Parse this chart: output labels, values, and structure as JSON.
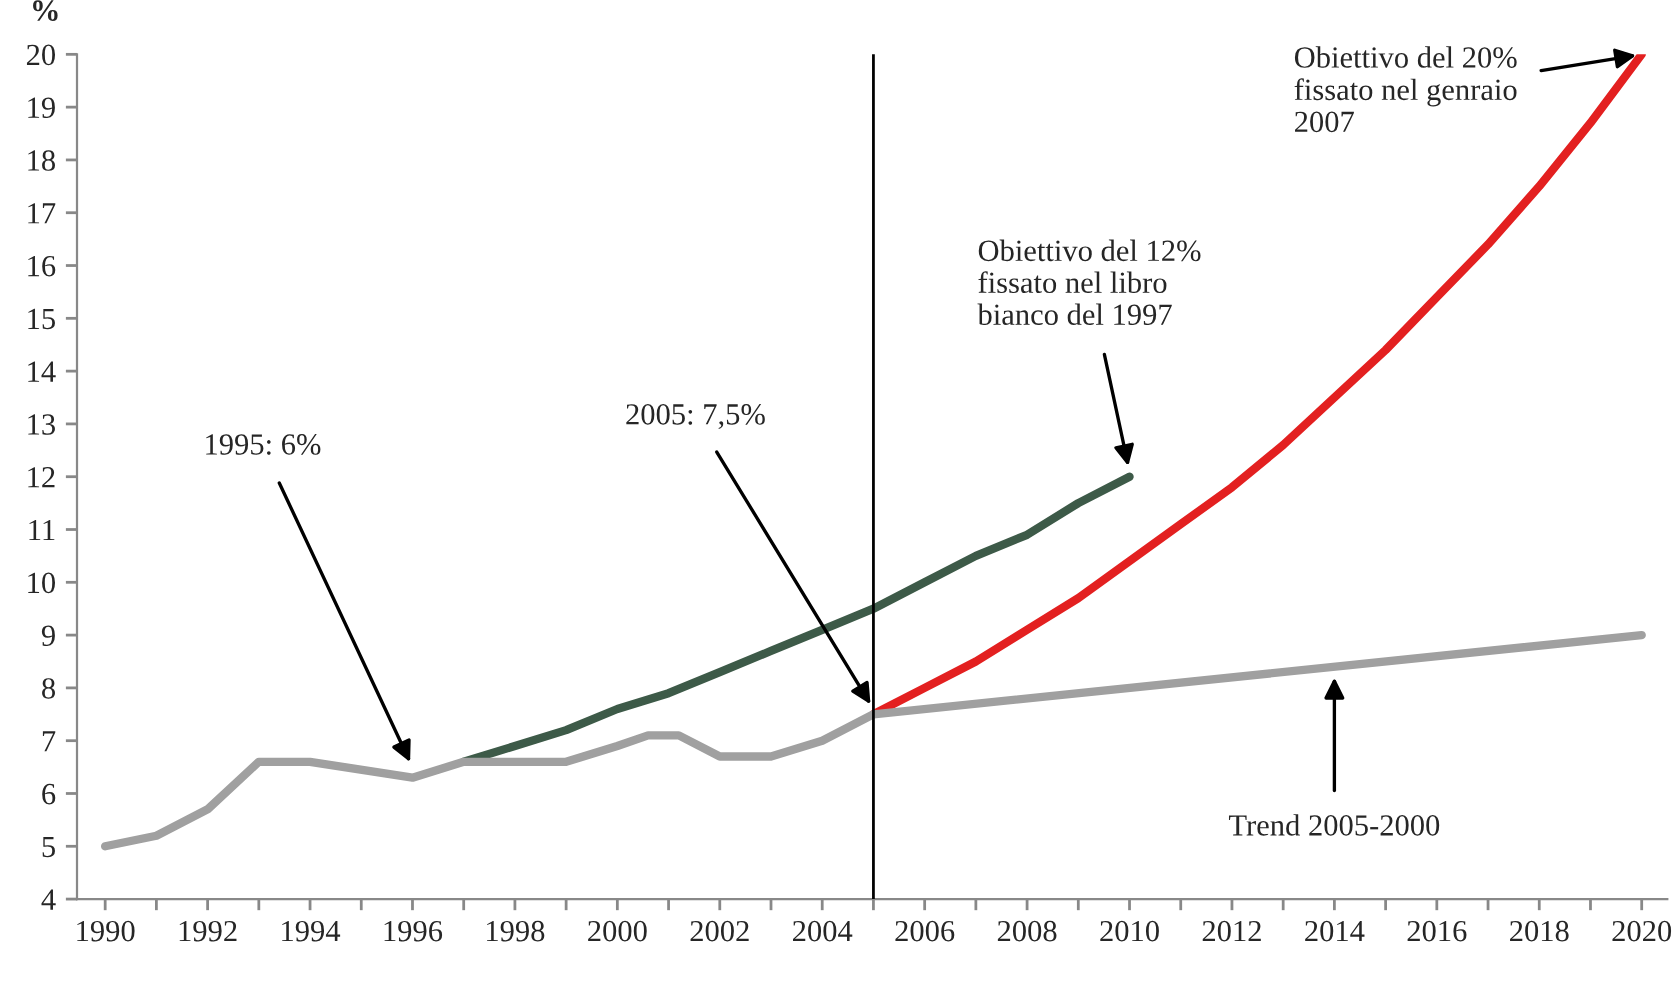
{
  "chart_data": {
    "type": "line",
    "ylabel": "%",
    "xlim": [
      1989.45,
      2020.5
    ],
    "ylim": [
      4,
      20
    ],
    "xticks": [
      1990,
      {
        "value": 1991,
        "label": null
      },
      1992,
      {
        "value": 1993,
        "label": null
      },
      1994,
      {
        "value": 1995,
        "label": null
      },
      1996,
      {
        "value": 1997,
        "label": null
      },
      1998,
      {
        "value": 1999,
        "label": null
      },
      2000,
      {
        "value": 2001,
        "label": null
      },
      2002,
      {
        "value": 2003,
        "label": null
      },
      2004,
      {
        "value": 2005,
        "label": null
      },
      2006,
      {
        "value": 2007,
        "label": null
      },
      2008,
      {
        "value": 2009,
        "label": null
      },
      2010,
      {
        "value": 2011,
        "label": null
      },
      2012,
      {
        "value": 2013,
        "label": null
      },
      2014,
      {
        "value": 2015,
        "label": null
      },
      2016,
      {
        "value": 2017,
        "label": null
      },
      2018,
      {
        "value": 2019,
        "label": null
      },
      2020
    ],
    "yticks": [
      4,
      5,
      6,
      7,
      8,
      9,
      10,
      11,
      12,
      13,
      14,
      15,
      16,
      17,
      18,
      19,
      20
    ],
    "grid": false,
    "legend": false,
    "marker": "none",
    "line_style": "solid",
    "series": [
      {
        "color": "#3d5a48",
        "x": [
          1997,
          1998,
          1999,
          2000,
          2001,
          2002,
          2003,
          2004,
          2005,
          2006,
          2007,
          2008,
          2009,
          2010
        ],
        "values": [
          6.6,
          6.9,
          7.2,
          7.6,
          7.9,
          8.3,
          8.7,
          9.1,
          9.5,
          10.0,
          10.5,
          10.9,
          11.5,
          12.0
        ]
      },
      {
        "color": "#e32020",
        "x": [
          2005,
          2006,
          2007,
          2008,
          2009,
          2010,
          2011,
          2012,
          2013,
          2014,
          2015,
          2016,
          2017,
          2018,
          2019,
          2020
        ],
        "values": [
          7.5,
          8.0,
          8.5,
          9.1,
          9.7,
          10.4,
          11.1,
          11.8,
          12.6,
          13.5,
          14.4,
          15.4,
          16.4,
          17.5,
          18.7,
          20.0
        ]
      },
      {
        "color": "#a0a0a0",
        "x": [
          1990,
          1991,
          1992,
          1993,
          1994,
          1996,
          1997,
          1998,
          1999,
          2000,
          2000.6,
          2001.2,
          2002,
          2003,
          2004,
          2005,
          2020
        ],
        "values": [
          5.0,
          5.2,
          5.7,
          6.6,
          6.6,
          6.3,
          6.6,
          6.6,
          6.6,
          6.9,
          7.1,
          7.1,
          6.7,
          6.7,
          7.0,
          7.5,
          9.0
        ]
      }
    ],
    "ref_lines": [
      {
        "axis": "x",
        "value": 2005,
        "color": "#000000"
      }
    ],
    "annotations": [
      {
        "text": "1995: 6%",
        "x": 1996,
        "y": 6.5
      },
      {
        "text": "2005: 7,5%",
        "x": 2005,
        "y": 7.6
      },
      {
        "text": "Obiettivo del 12%\nfissato nel libro\nbianco del 1997",
        "x": 2010,
        "y": 12.1
      },
      {
        "text": "Obiettivo del 20%\nfissato nel genraio\n2007",
        "x": 2020,
        "y": 20
      },
      {
        "text": "Trend 2005-2000",
        "x": 2014,
        "y": 8.3
      }
    ]
  }
}
